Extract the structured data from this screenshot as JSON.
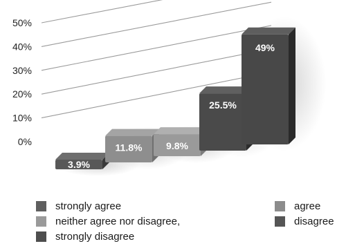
{
  "chart_data": {
    "type": "bar",
    "categories": [
      "3.9%",
      "11.8%",
      "9.8%",
      "25.5%",
      "49%"
    ],
    "values": [
      3.9,
      11.8,
      9.8,
      25.5,
      49
    ],
    "data_labels": [
      "3.9%",
      "11.8%",
      "9.8%",
      "25.5%",
      "49%"
    ],
    "y_ticks": [
      "0%",
      "10%",
      "20%",
      "30%",
      "40%",
      "50%"
    ],
    "ylim": [
      0,
      50
    ],
    "grid": true,
    "legend_position": "bottom",
    "legend": [
      {
        "label": "strongly agree",
        "color": "#5f5f5f"
      },
      {
        "label": "neither agree nor disagree,",
        "color": "#9a9a9a"
      },
      {
        "label": "strongly disagree",
        "color": "#4e4e4e"
      },
      {
        "label": "agree",
        "color": "#8c8c8c"
      },
      {
        "label": "disagree",
        "color": "#555555"
      }
    ],
    "bar_colors": [
      "#585858",
      "#8e8e8e",
      "#9a9a9a",
      "#4a4a4a",
      "#484848"
    ]
  }
}
